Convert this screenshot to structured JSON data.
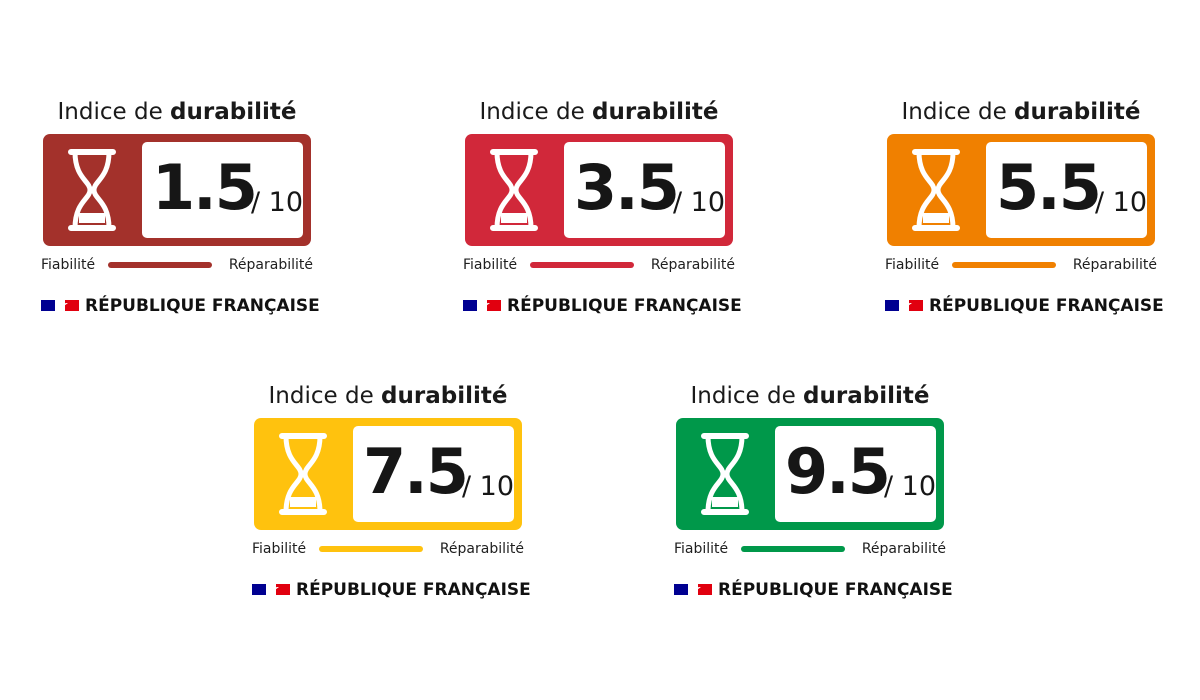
{
  "labels": [
    {
      "title_prefix": "Indice de ",
      "title_strong": "durabilité",
      "score": "1.5",
      "max": "/ 10",
      "left_criterion": "Fiabilité",
      "right_criterion": "Réparabilité",
      "republic_text": "RÉPUBLIQUE FRANÇAISE",
      "color": "#a3312b",
      "hourglass_icon": "hourglass-icon",
      "flag_icon": "french-flag-icon"
    },
    {
      "title_prefix": "Indice de ",
      "title_strong": "durabilité",
      "score": "3.5",
      "max": "/ 10",
      "left_criterion": "Fiabilité",
      "right_criterion": "Réparabilité",
      "republic_text": "RÉPUBLIQUE FRANÇAISE",
      "color": "#d1283a",
      "hourglass_icon": "hourglass-icon",
      "flag_icon": "french-flag-icon"
    },
    {
      "title_prefix": "Indice de ",
      "title_strong": "durabilité",
      "score": "5.5",
      "max": "/ 10",
      "left_criterion": "Fiabilité",
      "right_criterion": "Réparabilité",
      "republic_text": "RÉPUBLIQUE FRANÇAISE",
      "color": "#f08000",
      "hourglass_icon": "hourglass-icon",
      "flag_icon": "french-flag-icon"
    },
    {
      "title_prefix": "Indice de ",
      "title_strong": "durabilité",
      "score": "7.5",
      "max": "/ 10",
      "left_criterion": "Fiabilité",
      "right_criterion": "Réparabilité",
      "republic_text": "RÉPUBLIQUE FRANÇAISE",
      "color": "#ffc20e",
      "hourglass_icon": "hourglass-icon",
      "flag_icon": "french-flag-icon"
    },
    {
      "title_prefix": "Indice de ",
      "title_strong": "durabilité",
      "score": "9.5",
      "max": "/ 10",
      "left_criterion": "Fiabilité",
      "right_criterion": "Réparabilité",
      "republic_text": "RÉPUBLIQUE FRANÇAISE",
      "color": "#00984a",
      "hourglass_icon": "hourglass-icon",
      "flag_icon": "french-flag-icon"
    }
  ],
  "flag_colors": {
    "blue": "#000091",
    "white": "#ffffff",
    "red": "#e1000f"
  }
}
